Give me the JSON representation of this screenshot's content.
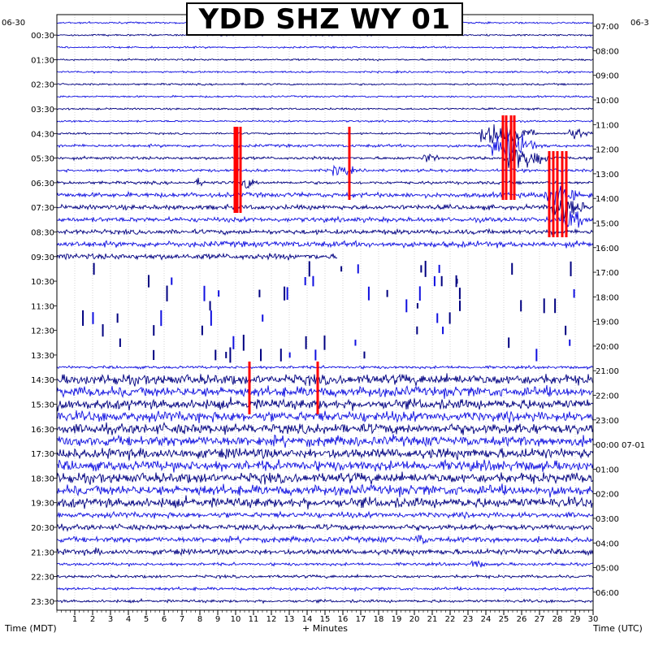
{
  "chart_data": {
    "type": "helicorder",
    "title": "YDD SHZ WY 01",
    "xlabel": "+ Minutes",
    "left_axis_label": "Time (MDT)",
    "right_axis_label": "Time (UTC)",
    "xlim": [
      0,
      30
    ],
    "x_ticks": [
      "1",
      "2",
      "3",
      "4",
      "5",
      "6",
      "7",
      "8",
      "9",
      "10",
      "11",
      "12",
      "13",
      "14",
      "15",
      "16",
      "17",
      "18",
      "19",
      "20",
      "21",
      "22",
      "23",
      "24",
      "25",
      "26",
      "27",
      "28",
      "29",
      "30"
    ],
    "left_date_label": "06-30",
    "right_date_label": "06-3",
    "left_time_labels": [
      "00:30",
      "01:30",
      "02:30",
      "03:30",
      "04:30",
      "05:30",
      "06:30",
      "07:30",
      "08:30",
      "09:30",
      "10:30",
      "11:30",
      "12:30",
      "13:30",
      "14:30",
      "15:30",
      "16:30",
      "17:30",
      "18:30",
      "19:30",
      "20:30",
      "21:30",
      "22:30",
      "23:30"
    ],
    "right_time_labels": [
      "07:00",
      "08:00",
      "09:00",
      "10:00",
      "11:00",
      "12:00",
      "13:00",
      "14:00",
      "15:00",
      "16:00",
      "17:00",
      "18:00",
      "19:00",
      "20:00",
      "21:00",
      "22:00",
      "23:00",
      "00:00 07-01",
      "01:00",
      "02:00",
      "03:00",
      "04:00",
      "05:00",
      "06:00"
    ],
    "trace_colors": [
      "#1010e0",
      "#000080"
    ],
    "clip_color": "#ff0000",
    "grid": true
  }
}
